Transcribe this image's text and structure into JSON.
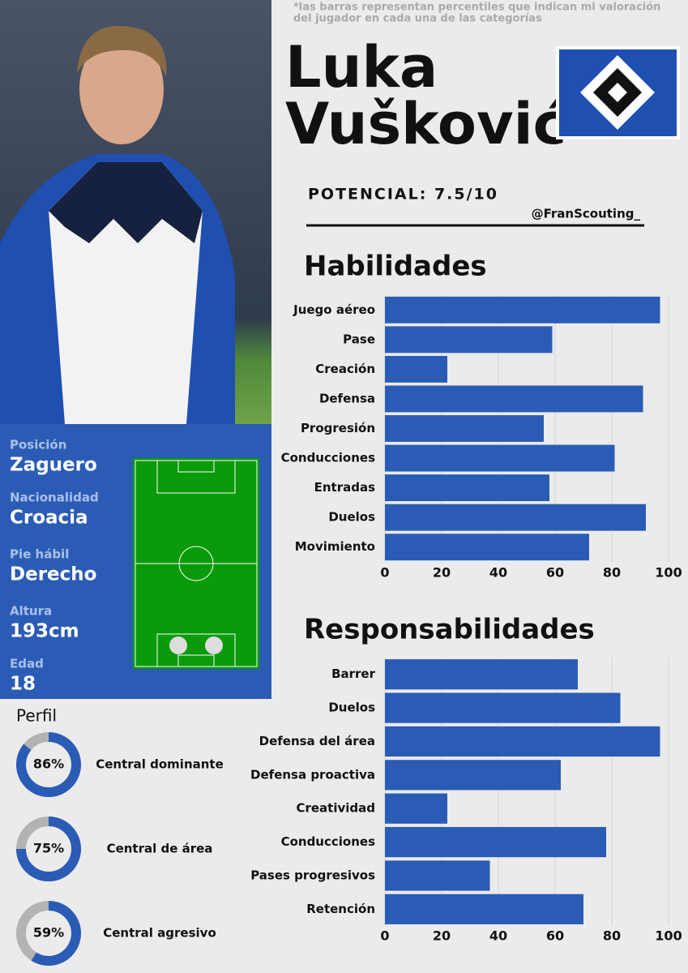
{
  "note": [
    "*las barras representan percentiles que indican mi valoración",
    "del jugador en cada una de las categorías"
  ],
  "player": {
    "first_name": "Luka",
    "last_name": "Vušković"
  },
  "potential": "POTENCIAL: 7.5/10",
  "handle": "@FranScouting_",
  "info": [
    {
      "label": "Posición",
      "value": "Zaguero"
    },
    {
      "label": "Nacionalidad",
      "value": "Croacia"
    },
    {
      "label": "Pie hábil",
      "value": "Derecho"
    },
    {
      "label": "Altura",
      "value": "193cm"
    },
    {
      "label": "Edad",
      "value": "18"
    }
  ],
  "chart_data": [
    {
      "type": "bar",
      "orientation": "horizontal",
      "title": "Habilidades",
      "categories": [
        "Juego aéreo",
        "Pase",
        "Creación",
        "Defensa",
        "Progresión",
        "Conducciones",
        "Entradas",
        "Duelos",
        "Movimiento"
      ],
      "values": [
        97,
        59,
        22,
        91,
        56,
        81,
        58,
        92,
        72
      ],
      "color": "#2b5cb5",
      "xlim": [
        0,
        100
      ],
      "xticks": [
        0,
        20,
        40,
        60,
        80,
        100
      ],
      "grid": true
    },
    {
      "type": "bar",
      "orientation": "horizontal",
      "title": "Responsabilidades",
      "categories": [
        "Barrer",
        "Duelos",
        "Defensa del área",
        "Defensa proactiva",
        "Creatividad",
        "Conducciones",
        "Pases progresivos",
        "Retención"
      ],
      "values": [
        68,
        83,
        97,
        62,
        22,
        78,
        37,
        70
      ],
      "color": "#2b5cb5",
      "xlim": [
        0,
        100
      ],
      "xticks": [
        0,
        20,
        40,
        60,
        80,
        100
      ],
      "grid": true
    },
    {
      "type": "donut",
      "title": "Perfil",
      "categories": [
        "Central dominante",
        "Central de área",
        "Central agresivo"
      ],
      "values": [
        86,
        75,
        59
      ],
      "value_labels": [
        "86%",
        "75%",
        "59%"
      ],
      "color": "#2b5cb5",
      "track_color": "#b3b3b3"
    }
  ]
}
